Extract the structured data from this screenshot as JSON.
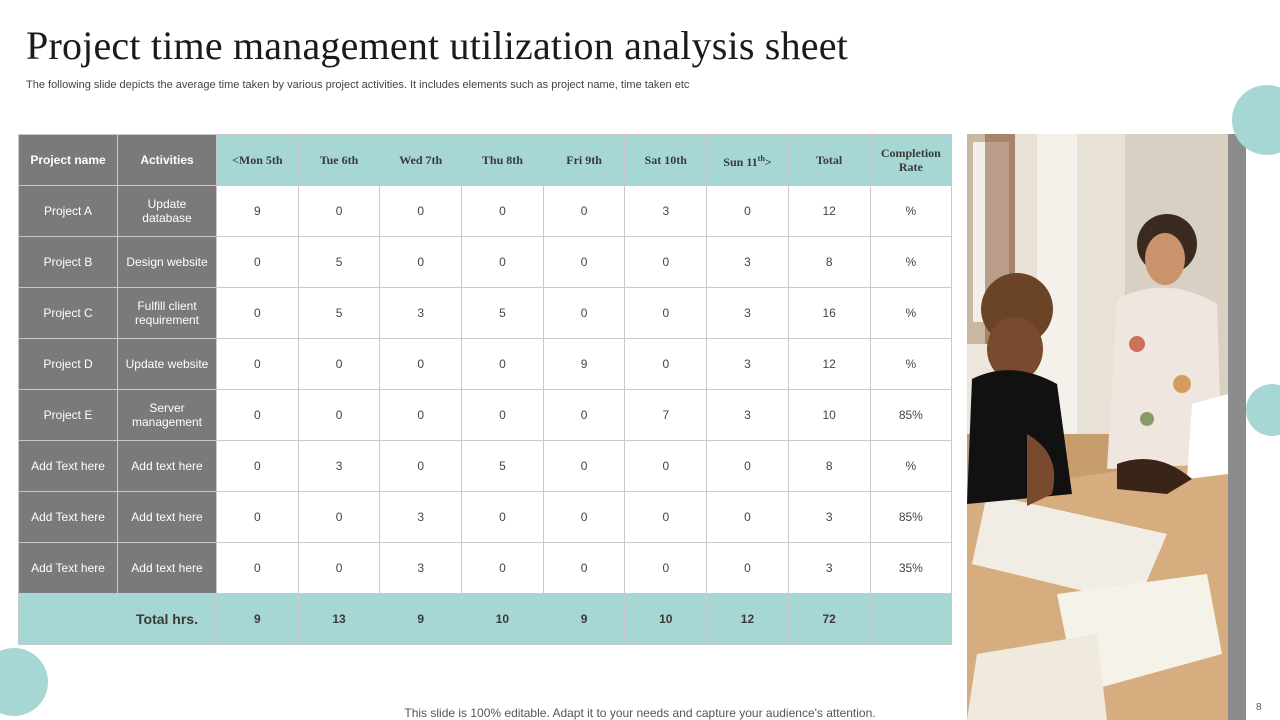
{
  "slide": {
    "title": "Project time management utilization analysis sheet",
    "subtitle": "The following slide depicts the average time taken by various project activities. It includes elements such as project name, time taken etc",
    "footer": "This slide is 100% editable. Adapt it to your needs and capture your audience's attention.",
    "page_number": "8"
  },
  "table": {
    "headers": {
      "project": "Project name",
      "activities": "Activities",
      "mon": "<Mon  5th",
      "tue": "Tue 6th",
      "wed": "Wed  7th",
      "thu": "Thu  8th",
      "fri": "Fri  9th",
      "sat": "Sat 10th",
      "sun_main": "Sun 11",
      "sun_sup": "th",
      "sun_end": ">",
      "total": "Total",
      "rate": "Completion Rate"
    },
    "rows": [
      {
        "project": "Project A",
        "activity": "Update database",
        "values": [
          "9",
          "0",
          "0",
          "0",
          "0",
          "3",
          "0"
        ],
        "total": "12",
        "rate": "%"
      },
      {
        "project": "Project B",
        "activity": "Design website",
        "values": [
          "0",
          "5",
          "0",
          "0",
          "0",
          "0",
          "3"
        ],
        "total": "8",
        "rate": "%"
      },
      {
        "project": "Project C",
        "activity": "Fulfill client requirement",
        "values": [
          "0",
          "5",
          "3",
          "5",
          "0",
          "0",
          "3"
        ],
        "total": "16",
        "rate": "%"
      },
      {
        "project": "Project D",
        "activity": "Update website",
        "values": [
          "0",
          "0",
          "0",
          "0",
          "9",
          "0",
          "3"
        ],
        "total": "12",
        "rate": "%"
      },
      {
        "project": "Project E",
        "activity": "Server management",
        "values": [
          "0",
          "0",
          "0",
          "0",
          "0",
          "7",
          "3"
        ],
        "total": "10",
        "rate": "85%"
      },
      {
        "project": "Add Text here",
        "activity": "Add text here",
        "values": [
          "0",
          "3",
          "0",
          "5",
          "0",
          "0",
          "0"
        ],
        "total": "8",
        "rate": "%"
      },
      {
        "project": "Add Text here",
        "activity": "Add text here",
        "values": [
          "0",
          "0",
          "3",
          "0",
          "0",
          "0",
          "0"
        ],
        "total": "3",
        "rate": "85%"
      },
      {
        "project": "Add Text here",
        "activity": "Add text here",
        "values": [
          "0",
          "0",
          "3",
          "0",
          "0",
          "0",
          "0"
        ],
        "total": "3",
        "rate": "35%"
      }
    ],
    "totals": {
      "label": "Total hrs.",
      "values": [
        "9",
        "13",
        "9",
        "10",
        "9",
        "10",
        "12"
      ],
      "total": "72",
      "rate": ""
    }
  },
  "colors": {
    "teal": "#a7d7d5",
    "gray": "#7a7a7a"
  },
  "photo": {
    "icon": "team-meeting-photo"
  }
}
